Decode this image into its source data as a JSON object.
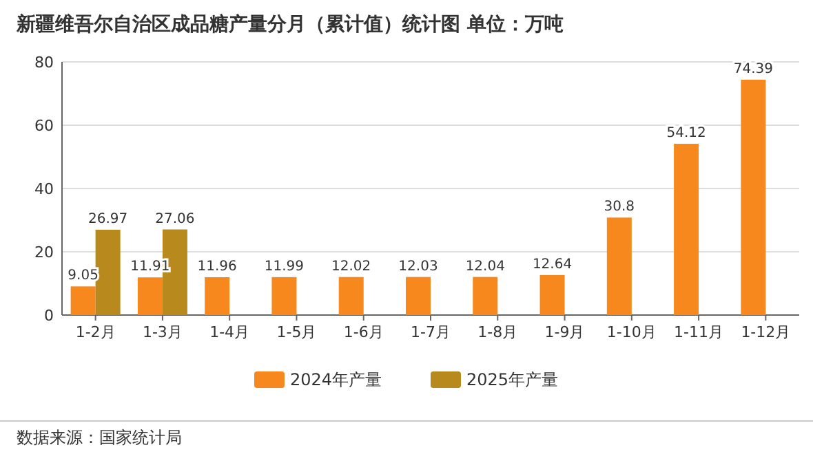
{
  "chart_data": {
    "type": "bar",
    "title": "新疆维吾尔自治区成品糖产量分月（累计值）统计图  单位：万吨",
    "categories": [
      "1-2月",
      "1-3月",
      "1-4月",
      "1-5月",
      "1-6月",
      "1-7月",
      "1-8月",
      "1-9月",
      "1-10月",
      "1-11月",
      "1-12月"
    ],
    "series": [
      {
        "name": "2024年产量",
        "color": "#f7881e",
        "values": [
          9.05,
          11.91,
          11.96,
          11.99,
          12.02,
          12.03,
          12.04,
          12.64,
          30.8,
          54.12,
          74.39
        ]
      },
      {
        "name": "2025年产量",
        "color": "#b8891c",
        "values": [
          26.97,
          27.06,
          null,
          null,
          null,
          null,
          null,
          null,
          null,
          null,
          null
        ]
      }
    ],
    "ylim": [
      0,
      80
    ],
    "yticks": [
      0,
      20,
      40,
      60,
      80
    ],
    "grid": "y",
    "legend": "bottom",
    "data_labels": true,
    "annotations": [
      "数据来源：国家统计局"
    ]
  }
}
